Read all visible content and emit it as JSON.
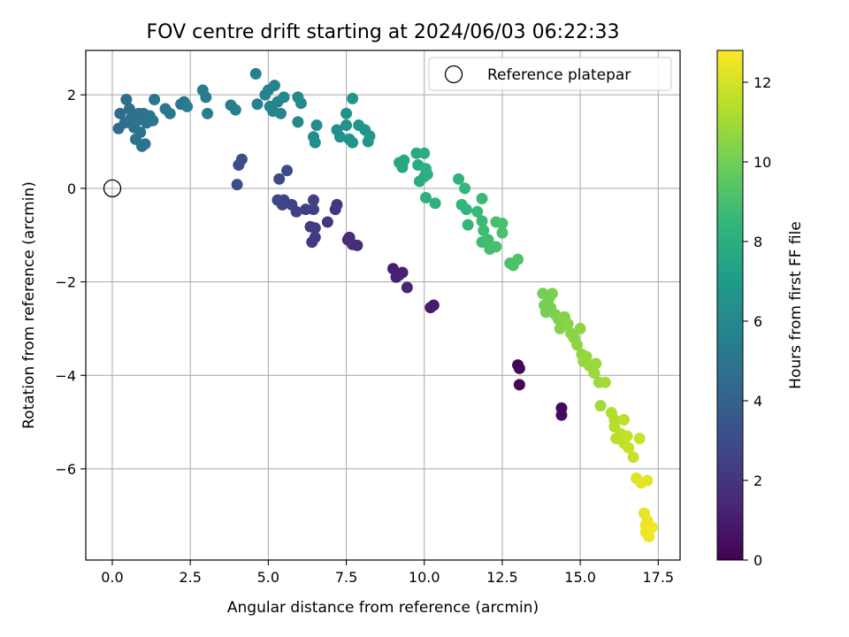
{
  "chart_data": {
    "type": "scatter",
    "title": "FOV centre drift starting at 2024/06/03 06:22:33",
    "xlabel": "Angular distance from reference (arcmin)",
    "ylabel": "Rotation from reference (arcmin)",
    "xlim": [
      -0.85,
      18.2
    ],
    "ylim": [
      -7.95,
      2.95
    ],
    "xticks": [
      0.0,
      2.5,
      5.0,
      7.5,
      10.0,
      12.5,
      15.0,
      17.5
    ],
    "xtick_labels": [
      "0.0",
      "2.5",
      "5.0",
      "7.5",
      "10.0",
      "12.5",
      "15.0",
      "17.5"
    ],
    "yticks": [
      -6,
      -4,
      -2,
      0,
      2
    ],
    "ytick_labels": [
      "−6",
      "−4",
      "−2",
      "0",
      "2"
    ],
    "grid": true,
    "legend": {
      "position": "top-right",
      "entries": [
        "Reference platepar"
      ]
    },
    "reference_point": {
      "x": 0.0,
      "y": 0.0,
      "label": "Reference platepar"
    },
    "colorbar": {
      "label": "Hours from first FF file",
      "colormap": "viridis",
      "range": [
        0,
        12.8
      ],
      "ticks": [
        0,
        2,
        4,
        6,
        8,
        10,
        12
      ],
      "tick_labels": [
        "0",
        "2",
        "4",
        "6",
        "8",
        "10",
        "12"
      ]
    },
    "colormap_stops": [
      "#440154",
      "#482878",
      "#3e4989",
      "#31688e",
      "#26828e",
      "#1f9e89",
      "#35b779",
      "#6ece58",
      "#b5de2b",
      "#fde725"
    ],
    "points": [
      [
        13.0,
        -3.78,
        0.1
      ],
      [
        13.05,
        -3.85,
        0.15
      ],
      [
        13.05,
        -4.2,
        0.2
      ],
      [
        14.4,
        -4.7,
        0.3
      ],
      [
        14.4,
        -4.85,
        0.35
      ],
      [
        10.3,
        -2.5,
        0.9
      ],
      [
        10.2,
        -2.55,
        0.95
      ],
      [
        9.0,
        -1.72,
        1.1
      ],
      [
        9.1,
        -1.9,
        1.15
      ],
      [
        9.3,
        -1.8,
        1.2
      ],
      [
        9.2,
        -1.85,
        1.2
      ],
      [
        9.45,
        -2.12,
        1.3
      ],
      [
        7.6,
        -1.05,
        1.6
      ],
      [
        7.7,
        -1.2,
        1.65
      ],
      [
        7.85,
        -1.22,
        1.7
      ],
      [
        7.55,
        -1.1,
        1.7
      ],
      [
        7.15,
        -0.45,
        2.0
      ],
      [
        7.2,
        -0.35,
        2.05
      ],
      [
        6.9,
        -0.72,
        2.1
      ],
      [
        6.5,
        -1.05,
        2.2
      ],
      [
        6.4,
        -1.15,
        2.2
      ],
      [
        6.5,
        -0.85,
        2.25
      ],
      [
        6.35,
        -0.82,
        2.3
      ],
      [
        6.2,
        -0.45,
        2.4
      ],
      [
        6.45,
        -0.45,
        2.45
      ],
      [
        6.45,
        -0.25,
        2.5
      ],
      [
        5.9,
        -0.5,
        2.55
      ],
      [
        5.75,
        -0.35,
        2.6
      ],
      [
        5.5,
        -0.25,
        2.65
      ],
      [
        5.45,
        -0.35,
        2.7
      ],
      [
        5.3,
        -0.25,
        2.75
      ],
      [
        5.35,
        0.2,
        2.85
      ],
      [
        5.6,
        0.38,
        2.9
      ],
      [
        4.0,
        0.08,
        3.0
      ],
      [
        4.05,
        0.5,
        3.05
      ],
      [
        4.15,
        0.62,
        3.1
      ],
      [
        0.2,
        1.28,
        4.5
      ],
      [
        0.25,
        1.6,
        4.55
      ],
      [
        0.4,
        1.4,
        4.6
      ],
      [
        0.45,
        1.9,
        4.6
      ],
      [
        0.55,
        1.7,
        4.65
      ],
      [
        0.6,
        1.5,
        4.7
      ],
      [
        0.7,
        1.3,
        4.7
      ],
      [
        0.75,
        1.05,
        4.75
      ],
      [
        0.8,
        1.45,
        4.8
      ],
      [
        0.85,
        1.6,
        4.8
      ],
      [
        0.9,
        1.2,
        4.85
      ],
      [
        0.95,
        0.9,
        4.85
      ],
      [
        1.0,
        1.6,
        4.9
      ],
      [
        1.05,
        0.95,
        4.9
      ],
      [
        1.1,
        1.4,
        4.95
      ],
      [
        1.2,
        1.55,
        5.0
      ],
      [
        1.3,
        1.45,
        5.0
      ],
      [
        1.35,
        1.9,
        5.05
      ],
      [
        1.7,
        1.7,
        5.1
      ],
      [
        1.85,
        1.6,
        5.15
      ],
      [
        2.2,
        1.8,
        5.2
      ],
      [
        2.3,
        1.85,
        5.25
      ],
      [
        2.4,
        1.75,
        5.3
      ],
      [
        2.9,
        2.1,
        5.4
      ],
      [
        3.05,
        1.6,
        5.45
      ],
      [
        3.0,
        1.95,
        5.45
      ],
      [
        3.8,
        1.78,
        5.5
      ],
      [
        3.95,
        1.68,
        5.55
      ],
      [
        4.6,
        2.45,
        5.6
      ],
      [
        4.65,
        1.8,
        5.65
      ],
      [
        4.9,
        2.0,
        5.7
      ],
      [
        5.0,
        2.1,
        5.75
      ],
      [
        5.05,
        1.75,
        5.8
      ],
      [
        5.15,
        1.65,
        5.85
      ],
      [
        5.2,
        2.2,
        5.85
      ],
      [
        5.3,
        1.85,
        5.9
      ],
      [
        5.4,
        1.6,
        5.95
      ],
      [
        5.5,
        1.95,
        6.0
      ],
      [
        5.95,
        1.95,
        6.05
      ],
      [
        5.95,
        1.42,
        6.1
      ],
      [
        6.05,
        1.82,
        6.1
      ],
      [
        6.45,
        1.1,
        6.2
      ],
      [
        6.5,
        0.98,
        6.25
      ],
      [
        6.55,
        1.35,
        6.3
      ],
      [
        7.2,
        1.25,
        6.4
      ],
      [
        7.3,
        1.1,
        6.45
      ],
      [
        7.5,
        1.6,
        6.5
      ],
      [
        7.5,
        1.35,
        6.5
      ],
      [
        7.6,
        1.05,
        6.55
      ],
      [
        7.7,
        0.98,
        6.6
      ],
      [
        7.7,
        1.92,
        6.6
      ],
      [
        7.9,
        1.35,
        6.65
      ],
      [
        8.1,
        1.25,
        6.7
      ],
      [
        8.2,
        1.0,
        6.75
      ],
      [
        8.25,
        1.12,
        6.8
      ],
      [
        9.2,
        0.55,
        7.6
      ],
      [
        9.3,
        0.45,
        7.65
      ],
      [
        9.35,
        0.6,
        7.7
      ],
      [
        9.75,
        0.75,
        7.75
      ],
      [
        9.8,
        0.5,
        7.8
      ],
      [
        9.85,
        0.15,
        7.85
      ],
      [
        10.0,
        0.25,
        7.9
      ],
      [
        10.0,
        0.75,
        7.95
      ],
      [
        10.05,
        0.42,
        8.0
      ],
      [
        10.1,
        0.3,
        8.05
      ],
      [
        10.05,
        -0.2,
        8.1
      ],
      [
        10.35,
        -0.32,
        8.15
      ],
      [
        11.1,
        0.2,
        8.3
      ],
      [
        11.2,
        -0.35,
        8.35
      ],
      [
        11.3,
        0.0,
        8.4
      ],
      [
        11.35,
        -0.45,
        8.45
      ],
      [
        11.4,
        -0.78,
        8.5
      ],
      [
        11.7,
        -0.5,
        8.6
      ],
      [
        11.85,
        -0.22,
        8.65
      ],
      [
        11.85,
        -0.7,
        8.7
      ],
      [
        11.9,
        -0.9,
        8.75
      ],
      [
        11.85,
        -1.15,
        8.8
      ],
      [
        12.05,
        -1.1,
        8.85
      ],
      [
        12.1,
        -1.3,
        8.9
      ],
      [
        12.3,
        -0.72,
        8.95
      ],
      [
        12.3,
        -1.25,
        9.0
      ],
      [
        12.5,
        -0.75,
        9.05
      ],
      [
        12.5,
        -0.95,
        9.05
      ],
      [
        12.75,
        -1.6,
        9.1
      ],
      [
        12.85,
        -1.65,
        9.15
      ],
      [
        13.0,
        -1.52,
        9.2
      ],
      [
        13.8,
        -2.25,
        10.0
      ],
      [
        13.85,
        -2.5,
        10.05
      ],
      [
        13.9,
        -2.65,
        10.1
      ],
      [
        14.0,
        -2.35,
        10.1
      ],
      [
        14.05,
        -2.55,
        10.15
      ],
      [
        14.1,
        -2.25,
        10.2
      ],
      [
        14.2,
        -2.7,
        10.25
      ],
      [
        14.3,
        -2.8,
        10.3
      ],
      [
        14.35,
        -3.0,
        10.35
      ],
      [
        14.5,
        -2.75,
        10.4
      ],
      [
        14.6,
        -2.9,
        10.45
      ],
      [
        14.7,
        -3.1,
        10.5
      ],
      [
        14.8,
        -3.2,
        10.55
      ],
      [
        14.9,
        -3.35,
        10.6
      ],
      [
        15.0,
        -3.0,
        10.6
      ],
      [
        15.05,
        -3.55,
        10.65
      ],
      [
        15.1,
        -3.7,
        10.7
      ],
      [
        15.2,
        -3.6,
        10.75
      ],
      [
        15.3,
        -3.8,
        10.8
      ],
      [
        15.45,
        -3.95,
        10.85
      ],
      [
        15.5,
        -3.75,
        10.85
      ],
      [
        15.6,
        -4.15,
        10.9
      ],
      [
        15.65,
        -4.65,
        10.95
      ],
      [
        15.8,
        -4.15,
        11.0
      ],
      [
        16.0,
        -4.8,
        11.3
      ],
      [
        16.1,
        -4.95,
        11.35
      ],
      [
        16.1,
        -5.1,
        11.4
      ],
      [
        16.15,
        -5.35,
        11.45
      ],
      [
        16.3,
        -5.25,
        11.5
      ],
      [
        16.4,
        -4.95,
        11.55
      ],
      [
        16.4,
        -5.45,
        11.6
      ],
      [
        16.5,
        -5.3,
        11.65
      ],
      [
        16.55,
        -5.55,
        11.7
      ],
      [
        16.7,
        -5.75,
        11.75
      ],
      [
        16.9,
        -5.35,
        11.8
      ],
      [
        16.8,
        -6.2,
        12.2
      ],
      [
        16.95,
        -6.3,
        12.25
      ],
      [
        17.15,
        -6.25,
        12.3
      ],
      [
        17.05,
        -6.95,
        12.35
      ],
      [
        17.1,
        -7.2,
        12.4
      ],
      [
        17.15,
        -7.1,
        12.45
      ],
      [
        17.1,
        -7.35,
        12.5
      ],
      [
        17.2,
        -7.45,
        12.55
      ],
      [
        17.3,
        -7.25,
        12.6
      ]
    ]
  }
}
